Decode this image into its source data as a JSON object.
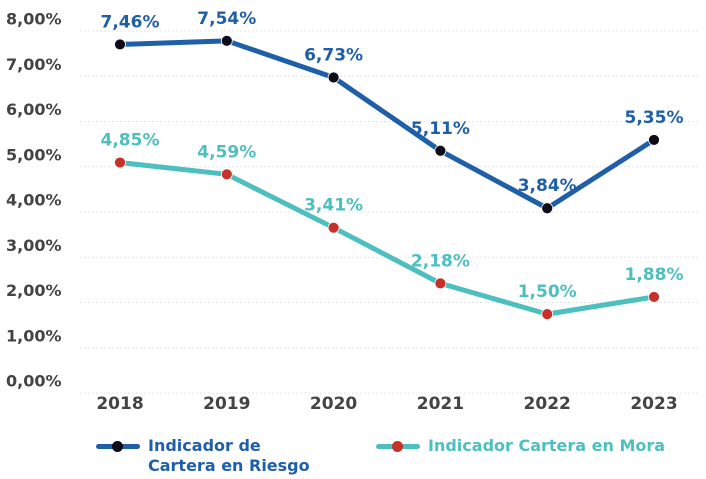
{
  "chart_data": {
    "type": "line",
    "x": [
      "2018",
      "2019",
      "2020",
      "2021",
      "2022",
      "2023"
    ],
    "series": [
      {
        "name": "Indicador de Cartera en Riesgo",
        "color": "#1f5fa8",
        "marker_color": "#0d0d1a",
        "values": [
          7.46,
          7.54,
          6.73,
          5.11,
          3.84,
          5.35
        ],
        "value_labels": [
          "7,46%",
          "7,54%",
          "6,73%",
          "5,11%",
          "3,84%",
          "5,35%"
        ]
      },
      {
        "name": "Indicador Cartera en Mora",
        "color": "#4dbfbf",
        "marker_color": "#c8302a",
        "values": [
          4.85,
          4.59,
          3.41,
          2.18,
          1.5,
          1.88
        ],
        "value_labels": [
          "4,85%",
          "4,59%",
          "3,41%",
          "2,18%",
          "1,50%",
          "1,88%"
        ]
      }
    ],
    "ylim": [
      0,
      8
    ],
    "yticks": [
      {
        "value": 0,
        "label": "0,00%"
      },
      {
        "value": 1,
        "label": "1,00%"
      },
      {
        "value": 2,
        "label": "2,00%"
      },
      {
        "value": 3,
        "label": "3,00%"
      },
      {
        "value": 4,
        "label": "4,00%"
      },
      {
        "value": 5,
        "label": "5,00%"
      },
      {
        "value": 6,
        "label": "6,00%"
      },
      {
        "value": 7,
        "label": "7,00%"
      },
      {
        "value": 8,
        "label": "8,00%"
      }
    ],
    "grid": true
  }
}
